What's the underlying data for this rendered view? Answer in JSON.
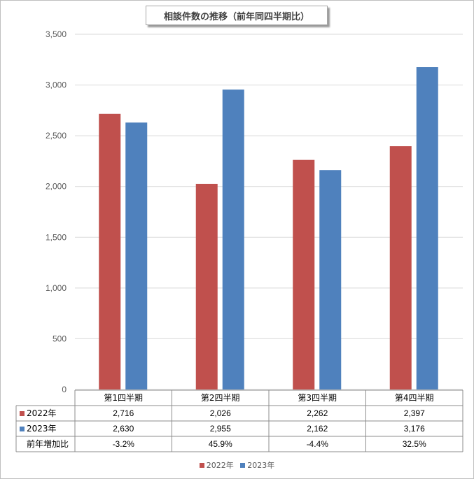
{
  "chart_data": {
    "type": "bar",
    "title": "相談件数の推移（前年同四半期比）",
    "categories": [
      "第1四半期",
      "第2四半期",
      "第3四半期",
      "第4四半期"
    ],
    "series": [
      {
        "name": "2022年",
        "values": [
          2716,
          2026,
          2262,
          2397
        ],
        "labels": [
          "2,716",
          "2,026",
          "2,262",
          "2,397"
        ],
        "color": "#C0504D"
      },
      {
        "name": "2023年",
        "values": [
          2630,
          2955,
          2162,
          3176
        ],
        "labels": [
          "2,630",
          "2,955",
          "2,162",
          "3,176"
        ],
        "color": "#4F81BD"
      }
    ],
    "table_rows": [
      {
        "label": "前年増加比",
        "values": [
          "-3.2%",
          "45.9%",
          "-4.4%",
          "32.5%"
        ]
      }
    ],
    "yticks": [
      "0",
      "500",
      "1,000",
      "1,500",
      "2,000",
      "2,500",
      "3,000",
      "3,500"
    ],
    "ylim": [
      0,
      3500
    ],
    "xlabel": "",
    "ylabel": "",
    "grid": true,
    "legend_position": "bottom"
  }
}
